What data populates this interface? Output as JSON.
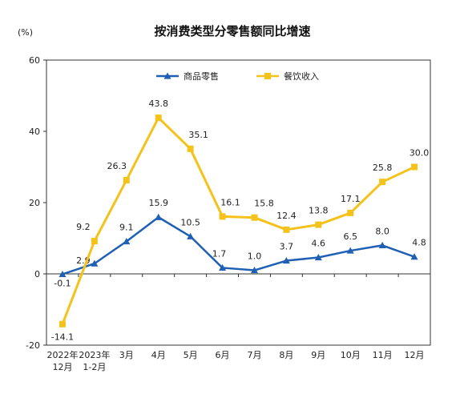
{
  "chart_data": {
    "type": "line",
    "title": "按消费类型分零售额同比增速",
    "unit_label": "(%)",
    "categories": [
      [
        "2022年",
        "12月"
      ],
      [
        "2023年",
        "1-2月"
      ],
      [
        "3月"
      ],
      [
        "4月"
      ],
      [
        "5月"
      ],
      [
        "6月"
      ],
      [
        "7月"
      ],
      [
        "8月"
      ],
      [
        "9月"
      ],
      [
        "10月"
      ],
      [
        "11月"
      ],
      [
        "12月"
      ]
    ],
    "series": [
      {
        "name": "商品零售",
        "color": "#1f5fb4",
        "marker": "triangle",
        "values": [
          -0.1,
          2.9,
          9.1,
          15.9,
          10.5,
          1.7,
          1.0,
          3.7,
          4.6,
          6.5,
          8.0,
          4.8
        ],
        "labels": [
          "-0.1",
          "2.9",
          "9.1",
          "15.9",
          "10.5",
          "1.7",
          "1.0",
          "3.7",
          "4.6",
          "6.5",
          "8.0",
          "4.8"
        ]
      },
      {
        "name": "餐饮收入",
        "color": "#f5c21b",
        "marker": "square",
        "values": [
          -14.1,
          9.2,
          26.3,
          43.8,
          35.1,
          16.1,
          15.8,
          12.4,
          13.8,
          17.1,
          25.8,
          30.0
        ],
        "labels": [
          "-14.1",
          "9.2",
          "26.3",
          "43.8",
          "35.1",
          "16.1",
          "15.8",
          "12.4",
          "13.8",
          "17.1",
          "25.8",
          "30.0"
        ]
      }
    ],
    "ylim": [
      -20,
      60
    ],
    "yticks": [
      "-20",
      "0",
      "20",
      "40",
      "60"
    ],
    "legend": "top-center",
    "grid": false
  }
}
